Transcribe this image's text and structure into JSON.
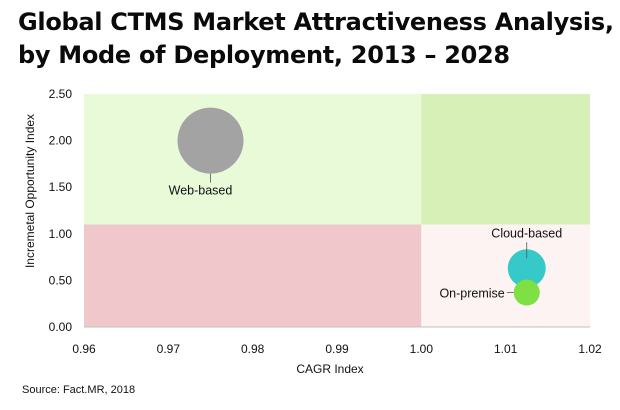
{
  "title_line1": "Global CTMS Market Attractiveness Analysis,",
  "title_line2": "by Mode of Deployment, 2013 – 2028",
  "source": "Source: Fact.MR, 2018",
  "chart_data": {
    "type": "scatter",
    "subtype": "bubble",
    "xlabel": "CAGR Index",
    "ylabel": "Incremetal Opportunity Index",
    "xlim": [
      0.96,
      1.02
    ],
    "ylim": [
      0.0,
      2.5
    ],
    "x_ticks": [
      "0.96",
      "0.97",
      "0.98",
      "0.99",
      "1.00",
      "1.01",
      "1.02"
    ],
    "y_ticks": [
      "0.00",
      "0.50",
      "1.00",
      "1.50",
      "2.00",
      "2.50"
    ],
    "grid": false,
    "legend": "none",
    "quadrants": {
      "x_split": 1.0,
      "y_split": 1.1,
      "colors": {
        "top_left": "#e8fad8",
        "top_right": "#d6f0b8",
        "bottom_left": "#f0c8cc",
        "bottom_right": "#fdf3f2"
      }
    },
    "points": [
      {
        "label": "Web-based",
        "x": 0.975,
        "y": 2.0,
        "size": 33,
        "color": "#a3a3a3"
      },
      {
        "label": "Cloud-based",
        "x": 1.0125,
        "y": 0.63,
        "size": 19,
        "color": "#36c9c9"
      },
      {
        "label": "On-premise",
        "x": 1.0125,
        "y": 0.37,
        "size": 13,
        "color": "#7ee043"
      }
    ]
  }
}
